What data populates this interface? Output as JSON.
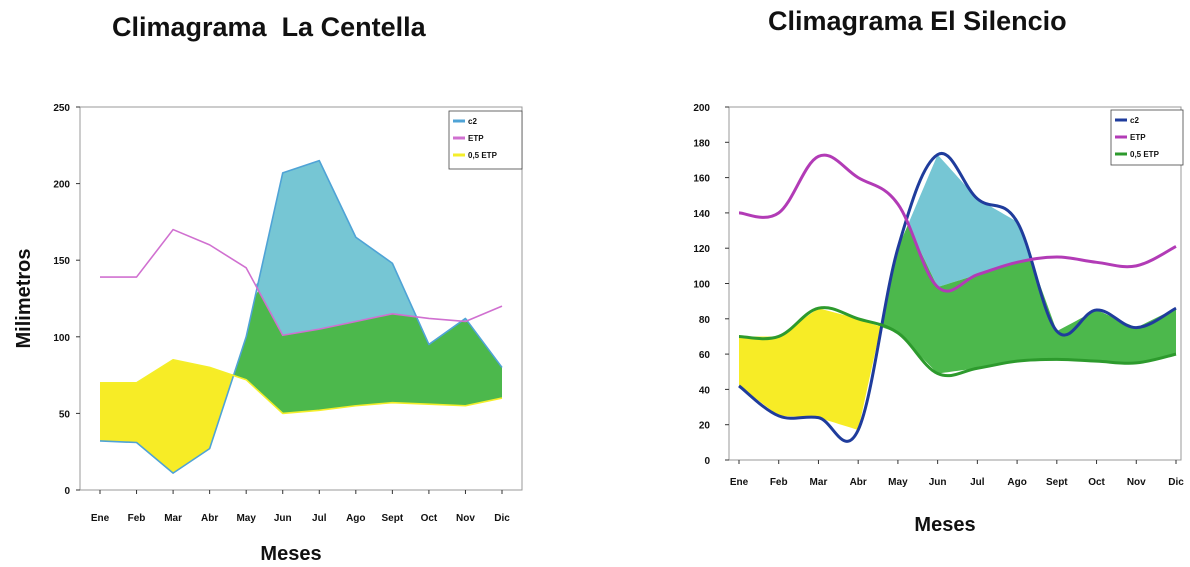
{
  "chart_data": [
    {
      "type": "line",
      "title": "Climagrama  La Centella",
      "xlabel": "Meses",
      "ylabel": "Milimetros",
      "ylim": [
        0,
        250
      ],
      "yticks": [
        "0",
        "50",
        "100",
        "150",
        "200",
        "250"
      ],
      "categories": [
        "Ene",
        "Feb",
        "Mar",
        "Abr",
        "May",
        "Jun",
        "Jul",
        "Ago",
        "Sept",
        "Oct",
        "Nov",
        "Dic"
      ],
      "series": [
        {
          "name": "c2",
          "color": "#4fa3d6",
          "values": [
            32,
            31,
            11,
            27,
            100,
            207,
            215,
            165,
            148,
            95,
            112,
            80
          ]
        },
        {
          "name": "ETP",
          "color": "#d070d0",
          "values": [
            139,
            139,
            170,
            160,
            145,
            101,
            105,
            110,
            115,
            112,
            110,
            120
          ]
        },
        {
          "name": "0,5 ETP",
          "color": "#f4ee2a",
          "values": [
            70,
            70,
            85,
            80,
            72,
            50,
            52,
            55,
            57,
            56,
            55,
            60
          ]
        }
      ],
      "legend": "top-right",
      "fills": {
        "surplus": "#76c6d4",
        "reserve": "#4cb84c",
        "deficit": "#f7ec26"
      }
    },
    {
      "type": "line",
      "title": "Climagrama El Silencio",
      "xlabel": "Meses",
      "ylabel": "",
      "ylim": [
        0,
        200
      ],
      "yticks": [
        "0",
        "20",
        "40",
        "60",
        "80",
        "100",
        "120",
        "140",
        "160",
        "180",
        "200"
      ],
      "categories": [
        "Ene",
        "Feb",
        "Mar",
        "Abr",
        "May",
        "Jun",
        "Jul",
        "Ago",
        "Sept",
        "Oct",
        "Nov",
        "Dic"
      ],
      "series": [
        {
          "name": "c2",
          "color": "#1f3c9c",
          "values": [
            42,
            25,
            24,
            17,
            120,
            173,
            148,
            135,
            73,
            85,
            75,
            86
          ]
        },
        {
          "name": "ETP",
          "color": "#b23bb6",
          "values": [
            140,
            140,
            172,
            160,
            145,
            98,
            105,
            112,
            115,
            112,
            110,
            121
          ]
        },
        {
          "name": "0,5 ETP",
          "color": "#2d9a2d",
          "values": [
            70,
            70,
            86,
            80,
            72,
            49,
            52,
            56,
            57,
            56,
            55,
            60
          ]
        }
      ],
      "legend": "top-right",
      "fills": {
        "surplus": "#76c6d4",
        "reserve": "#4cb84c",
        "deficit": "#f7ec26"
      }
    }
  ]
}
